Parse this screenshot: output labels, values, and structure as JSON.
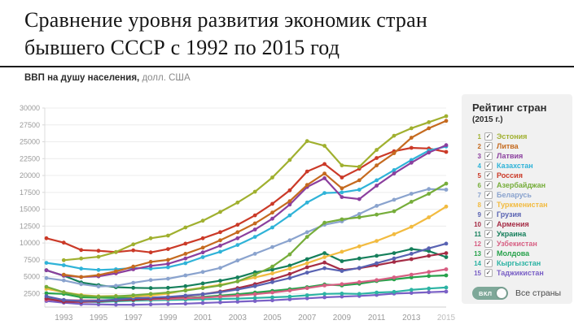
{
  "title": {
    "line1": "Сравнение уровня развития экономик стран",
    "line2": "бывшего СССР с 1992 по 2015 год"
  },
  "subtitle": {
    "bold": "ВВП на душу населения,",
    "units": "долл. США"
  },
  "legend": {
    "title": "Рейтинг стран",
    "subtitle": "(2015 г.)",
    "toggle": {
      "label": "ВКЛ",
      "text": "Все страны",
      "on": true,
      "color": "#7ea899"
    },
    "checkbox_glyph": "✓",
    "items": [
      {
        "rank": 1,
        "name": "Эстония",
        "color": "#a0b02f",
        "checked": true
      },
      {
        "rank": 2,
        "name": "Литва",
        "color": "#c56a1f",
        "checked": true
      },
      {
        "rank": 3,
        "name": "Латвия",
        "color": "#8b3f9e",
        "checked": true
      },
      {
        "rank": 4,
        "name": "Казахстан",
        "color": "#2fb3d8",
        "checked": true
      },
      {
        "rank": 5,
        "name": "Россия",
        "color": "#cb3a28",
        "checked": true
      },
      {
        "rank": 6,
        "name": "Азербайджан",
        "color": "#76ad3a",
        "checked": true
      },
      {
        "rank": 7,
        "name": "Беларусь",
        "color": "#8aa3ce",
        "checked": true
      },
      {
        "rank": 8,
        "name": "Туркменистан",
        "color": "#f2bb40",
        "checked": true
      },
      {
        "rank": 9,
        "name": "Грузия",
        "color": "#5862b2",
        "checked": true
      },
      {
        "rank": 10,
        "name": "Армения",
        "color": "#a52c45",
        "checked": true
      },
      {
        "rank": 11,
        "name": "Украина",
        "color": "#157f5b",
        "checked": true
      },
      {
        "rank": 12,
        "name": "Узбекистан",
        "color": "#d75f83",
        "checked": true
      },
      {
        "rank": 13,
        "name": "Молдова",
        "color": "#27a24b",
        "checked": true
      },
      {
        "rank": 14,
        "name": "Кыргызстан",
        "color": "#2cb3a3",
        "checked": true
      },
      {
        "rank": 15,
        "name": "Таджикистан",
        "color": "#7a60c6",
        "checked": true
      }
    ]
  },
  "chart_data": {
    "type": "line",
    "title": "ВВП на душу населения, долл. США",
    "xlabel": "",
    "ylabel": "долл. США",
    "x": [
      1992,
      1993,
      1994,
      1995,
      1996,
      1997,
      1998,
      1999,
      2000,
      2001,
      2002,
      2003,
      2004,
      2005,
      2006,
      2007,
      2008,
      2009,
      2010,
      2011,
      2012,
      2013,
      2014,
      2015
    ],
    "x_tick_labels": [
      "1993",
      "1995",
      "1997",
      "1999",
      "2001",
      "2003",
      "2005",
      "2007",
      "2009",
      "2011",
      "2013",
      "2015"
    ],
    "ylim": [
      500,
      30000
    ],
    "yticks": [
      2500,
      5000,
      7500,
      10000,
      12500,
      15000,
      17500,
      20000,
      22500,
      25000,
      27500,
      30000
    ],
    "grid": true,
    "marker": "circle",
    "legend_position": "right-panel",
    "series": [
      {
        "name": "Эстония",
        "color": "#a0b02f",
        "values": [
          null,
          7450,
          7700,
          7950,
          8650,
          9800,
          10700,
          11100,
          12300,
          13300,
          14600,
          16000,
          17600,
          19700,
          22300,
          25100,
          24400,
          21500,
          21300,
          23800,
          25900,
          27000,
          27900,
          28800
        ]
      },
      {
        "name": "Литва",
        "color": "#c56a1f",
        "values": [
          null,
          5300,
          4950,
          5250,
          5800,
          6500,
          7200,
          7500,
          8400,
          9300,
          10400,
          11600,
          12900,
          14500,
          16200,
          18600,
          20300,
          18100,
          19300,
          21500,
          23300,
          25600,
          27000,
          28100
        ]
      },
      {
        "name": "Латвия",
        "color": "#8b3f9e",
        "values": [
          5950,
          5150,
          4950,
          5050,
          5500,
          6100,
          6600,
          6900,
          7700,
          8600,
          9600,
          10700,
          12000,
          13600,
          15700,
          18300,
          19600,
          16800,
          16500,
          18500,
          20300,
          21900,
          23400,
          24500
        ]
      },
      {
        "name": "Казахстан",
        "color": "#2fb3d8",
        "values": [
          7050,
          6700,
          6200,
          6000,
          6100,
          6300,
          6200,
          6400,
          7000,
          7900,
          8700,
          9700,
          10900,
          12300,
          14100,
          16000,
          17400,
          17500,
          17900,
          19300,
          20800,
          22300,
          23700,
          24300
        ]
      },
      {
        "name": "Россия",
        "color": "#cb3a28",
        "values": [
          10700,
          10050,
          8950,
          8850,
          8650,
          8900,
          8600,
          9100,
          9900,
          10700,
          11600,
          12700,
          14100,
          15800,
          17800,
          20600,
          21700,
          19700,
          21000,
          22600,
          23600,
          24100,
          24000,
          23500
        ]
      },
      {
        "name": "Азербайджан",
        "color": "#76ad3a",
        "values": [
          3500,
          2700,
          2200,
          2050,
          2100,
          2250,
          2450,
          2650,
          2950,
          3300,
          3700,
          4300,
          5300,
          6500,
          8300,
          10900,
          13000,
          13500,
          13800,
          14200,
          14700,
          16100,
          17300,
          18800
        ]
      },
      {
        "name": "Беларусь",
        "color": "#8aa3ce",
        "values": [
          4800,
          4450,
          3900,
          3550,
          3650,
          4100,
          4500,
          4700,
          5200,
          5700,
          6300,
          7400,
          8400,
          9400,
          10400,
          11600,
          12700,
          13200,
          14300,
          15500,
          16400,
          17300,
          18000,
          17900
        ]
      },
      {
        "name": "Туркменистан",
        "color": "#f2bb40",
        "values": [
          3200,
          2700,
          2300,
          2100,
          2150,
          2100,
          2200,
          2500,
          3000,
          3400,
          3800,
          4300,
          4900,
          5500,
          6200,
          7000,
          7900,
          8700,
          9500,
          10300,
          11300,
          12400,
          13800,
          15400
        ]
      },
      {
        "name": "Грузия",
        "color": "#5862b2",
        "values": [
          2100,
          1550,
          1400,
          1450,
          1600,
          1800,
          1900,
          2000,
          2200,
          2400,
          2700,
          3100,
          3600,
          4200,
          4800,
          5600,
          6250,
          5850,
          6300,
          7000,
          7700,
          8400,
          9200,
          9900
        ]
      },
      {
        "name": "Армения",
        "color": "#a52c45",
        "values": [
          1750,
          1300,
          1250,
          1350,
          1500,
          1600,
          1750,
          1900,
          2100,
          2400,
          2800,
          3300,
          3900,
          4600,
          5400,
          6400,
          7100,
          6000,
          6250,
          6700,
          7200,
          7600,
          8100,
          8500
        ]
      },
      {
        "name": "Украина",
        "color": "#157f5b",
        "values": [
          5950,
          5150,
          4150,
          3750,
          3450,
          3350,
          3300,
          3350,
          3600,
          4000,
          4400,
          4900,
          5650,
          6050,
          6650,
          7600,
          8500,
          7300,
          7700,
          8100,
          8500,
          9100,
          8800,
          7900
        ]
      },
      {
        "name": "Узбекистан",
        "color": "#d75f83",
        "values": [
          1600,
          1550,
          1500,
          1500,
          1550,
          1600,
          1650,
          1700,
          1800,
          1900,
          2050,
          2200,
          2400,
          2650,
          2950,
          3300,
          3700,
          3900,
          4200,
          4500,
          4900,
          5300,
          5700,
          6100
        ]
      },
      {
        "name": "Молдова",
        "color": "#27a24b",
        "values": [
          2550,
          2450,
          1950,
          1900,
          1850,
          1900,
          1800,
          1750,
          1850,
          2000,
          2200,
          2400,
          2650,
          2900,
          3150,
          3450,
          3850,
          3700,
          3950,
          4350,
          4600,
          4900,
          5100,
          5200
        ]
      },
      {
        "name": "Кыргызстан",
        "color": "#2cb3a3",
        "values": [
          1800,
          1550,
          1300,
          1250,
          1350,
          1450,
          1500,
          1550,
          1600,
          1650,
          1700,
          1750,
          1850,
          1950,
          2050,
          2250,
          2450,
          2500,
          2450,
          2650,
          2750,
          3050,
          3250,
          3400
        ]
      },
      {
        "name": "Таджикистан",
        "color": "#7a60c6",
        "values": [
          1400,
          1150,
          950,
          900,
          850,
          850,
          900,
          950,
          1000,
          1100,
          1200,
          1300,
          1400,
          1500,
          1650,
          1800,
          1950,
          2050,
          2150,
          2300,
          2500,
          2600,
          2700,
          2800
        ]
      }
    ]
  }
}
